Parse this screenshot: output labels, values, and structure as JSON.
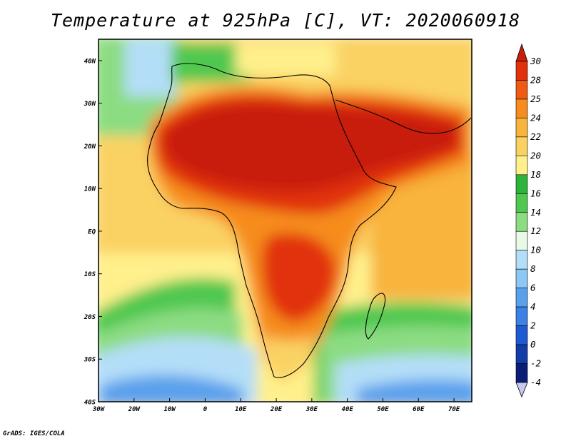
{
  "title": "Temperature at 925hPa [C], VT: 2020060918",
  "credit": "GrADS: IGES/COLA",
  "map": {
    "lat_labels": [
      "40N",
      "30N",
      "20N",
      "10N",
      "EQ",
      "10S",
      "20S",
      "30S",
      "40S"
    ],
    "lon_labels": [
      "30W",
      "20W",
      "10W",
      "0",
      "10E",
      "20E",
      "30E",
      "40E",
      "50E",
      "60E",
      "70E"
    ],
    "lon_range": [
      -30,
      75
    ],
    "lat_range": [
      -40,
      45
    ]
  },
  "colorbar": {
    "labels": [
      "30",
      "28",
      "25",
      "24",
      "22",
      "20",
      "18",
      "16",
      "14",
      "12",
      "10",
      "8",
      "6",
      "4",
      "2",
      "0",
      "-2",
      "-4"
    ],
    "colors": [
      "#c81e0a",
      "#e1320c",
      "#f05a14",
      "#f68c1e",
      "#f8b43c",
      "#fad264",
      "#fff08c",
      "#2db43c",
      "#50c850",
      "#8cdc82",
      "#e6fae6",
      "#b4def8",
      "#8cc8f5",
      "#5aa0ec",
      "#3c82e6",
      "#1e5ad2",
      "#123ca8",
      "#0a1e78",
      "#c8c8f0"
    ]
  }
}
